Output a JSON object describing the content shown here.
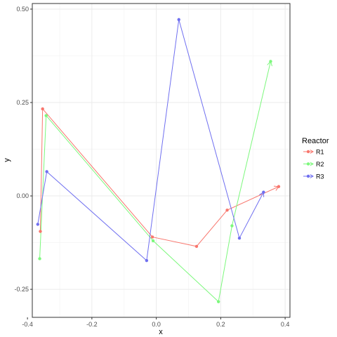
{
  "chart_data": {
    "type": "line",
    "title": "",
    "xlabel": "x",
    "ylabel": "y",
    "xlim": [
      -0.385,
      0.415
    ],
    "ylim": [
      -0.325,
      0.515
    ],
    "x_ticks": [
      -0.4,
      -0.2,
      0.0,
      0.2,
      0.4
    ],
    "x_tick_labels": [
      "-0.4",
      "-0.2",
      "0.0",
      "0.2",
      "0.4"
    ],
    "y_ticks": [
      -0.25,
      0.0,
      0.25,
      0.5
    ],
    "y_tick_labels": [
      "-0.25",
      "0.00",
      "0.25",
      "0.50"
    ],
    "grid": true,
    "legend": {
      "title": "Reactor",
      "position": "right"
    },
    "series": [
      {
        "name": "R1",
        "color": "#F8766D",
        "points": [
          [
            -0.36,
            -0.095
          ],
          [
            -0.353,
            0.233
          ],
          [
            -0.012,
            -0.11
          ],
          [
            0.125,
            -0.135
          ],
          [
            0.22,
            -0.038
          ],
          [
            0.38,
            0.025
          ]
        ]
      },
      {
        "name": "R2",
        "color": "#00BA38",
        "line_color": "#7CF87C",
        "points": [
          [
            -0.362,
            -0.168
          ],
          [
            -0.342,
            0.215
          ],
          [
            -0.01,
            -0.12
          ],
          [
            0.193,
            -0.283
          ],
          [
            0.235,
            -0.08
          ],
          [
            0.355,
            0.36
          ]
        ]
      },
      {
        "name": "R3",
        "color": "#619CFF",
        "line_color": "#6F6FF0",
        "points": [
          [
            -0.368,
            -0.076
          ],
          [
            -0.34,
            0.065
          ],
          [
            -0.03,
            -0.173
          ],
          [
            0.07,
            0.472
          ],
          [
            0.258,
            -0.113
          ],
          [
            0.333,
            0.01
          ]
        ]
      }
    ]
  }
}
